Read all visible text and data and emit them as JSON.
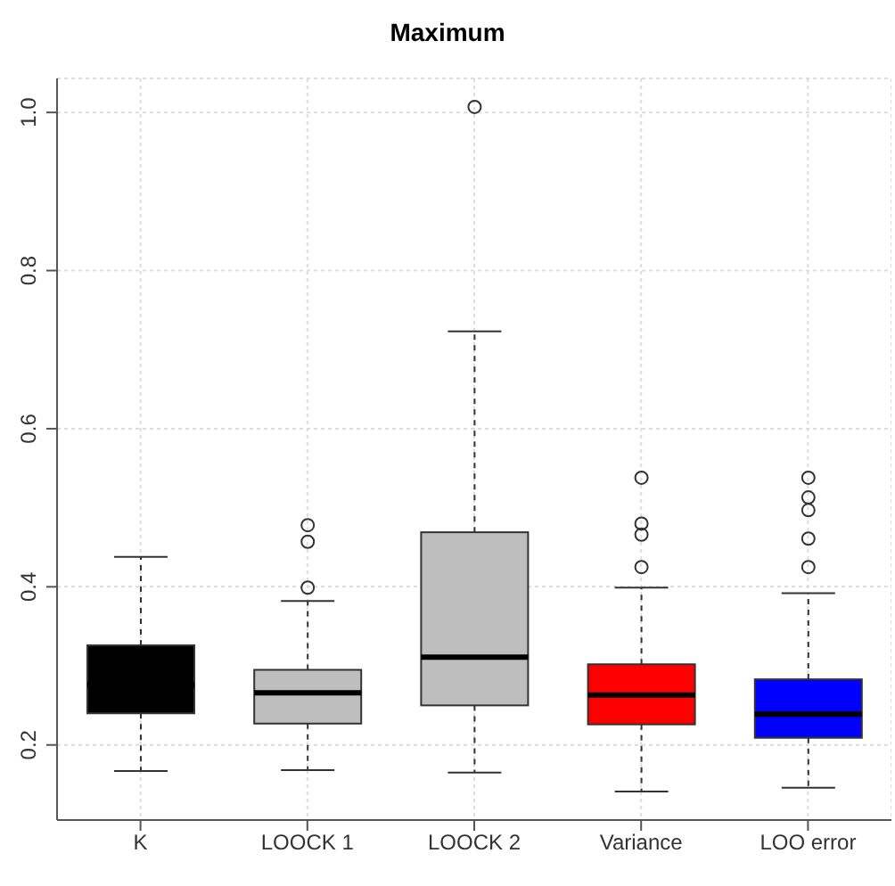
{
  "chart_data": {
    "type": "box",
    "title": "Maximum",
    "categories": [
      "K",
      "LOOCK 1",
      "LOOCK 2",
      "Variance",
      "LOO error"
    ],
    "colors": [
      "#000000",
      "#bebebe",
      "#bebebe",
      "#ff0000",
      "#0000ff"
    ],
    "boxes": [
      {
        "low": 0.167,
        "q1": 0.24,
        "median": 0.276,
        "q3": 0.326,
        "high": 0.438
      },
      {
        "low": 0.168,
        "q1": 0.227,
        "median": 0.266,
        "q3": 0.295,
        "high": 0.382,
        "outliers": [
          0.478,
          0.457,
          0.399
        ]
      },
      {
        "low": 0.165,
        "q1": 0.25,
        "median": 0.311,
        "q3": 0.469,
        "high": 0.723,
        "outliers": [
          1.007
        ]
      },
      {
        "low": 0.141,
        "q1": 0.226,
        "median": 0.263,
        "q3": 0.302,
        "high": 0.399,
        "outliers": [
          0.538,
          0.48,
          0.466,
          0.425
        ]
      },
      {
        "low": 0.146,
        "q1": 0.209,
        "median": 0.239,
        "q3": 0.283,
        "high": 0.392,
        "outliers": [
          0.538,
          0.513,
          0.497,
          0.461,
          0.425
        ]
      }
    ],
    "ylim": [
      0.105,
      1.043
    ],
    "yticks": [
      0.2,
      0.4,
      0.6,
      0.8,
      {
        "value": 1,
        "label": "1.0"
      }
    ],
    "grid": true
  }
}
